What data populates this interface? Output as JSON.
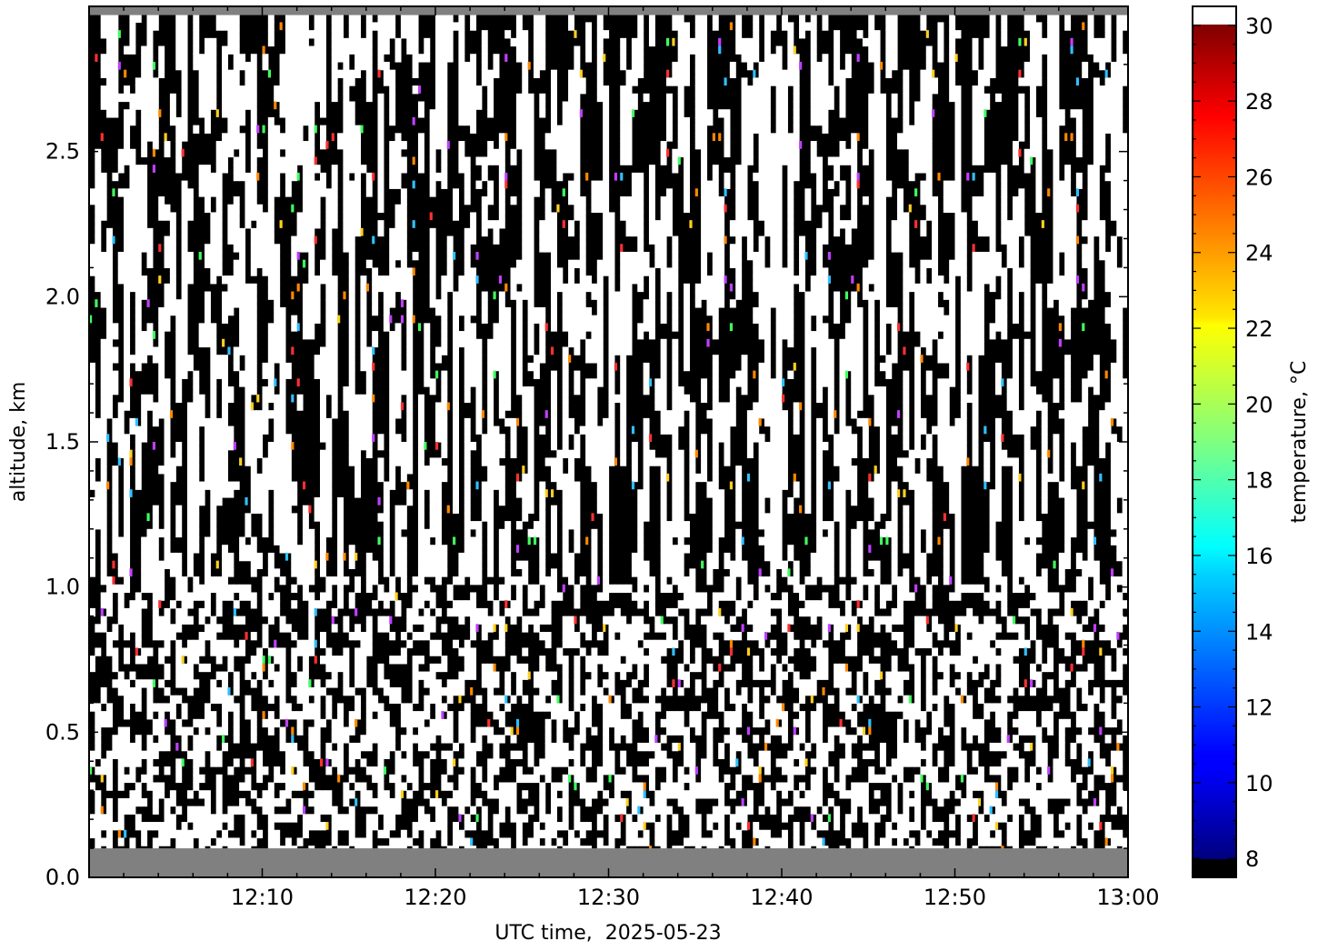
{
  "chart_data": {
    "type": "heatmap",
    "title": "",
    "xlabel": "UTC time,  2025-05-23",
    "ylabel": "altitude, km",
    "colorbar_label": "temperature, °C",
    "x_range": [
      "12:00",
      "13:00"
    ],
    "x_ticks": [
      "12:10",
      "12:20",
      "12:30",
      "12:40",
      "12:50",
      "13:00"
    ],
    "x_tick_minutes": [
      10,
      20,
      30,
      40,
      50,
      60
    ],
    "ylim": [
      0.0,
      3.0
    ],
    "y_ticks": [
      0.0,
      0.5,
      1.0,
      1.5,
      2.0,
      2.5
    ],
    "y_tick_labels": [
      "0.0",
      "0.5",
      "1.0",
      "1.5",
      "2.0",
      "2.5"
    ],
    "colorbar_range": [
      7.5,
      30.5
    ],
    "colorbar_ticks": [
      8,
      10,
      12,
      14,
      16,
      18,
      20,
      22,
      24,
      26,
      28,
      30
    ],
    "colormap": "jet",
    "under_color": "#000000",
    "over_color": "#ffffff",
    "nodata_color": "#808080",
    "nodata_bands_km": [
      [
        0.0,
        0.1
      ],
      [
        2.97,
        3.0
      ]
    ],
    "data_description_note": "",
    "grid": false
  }
}
